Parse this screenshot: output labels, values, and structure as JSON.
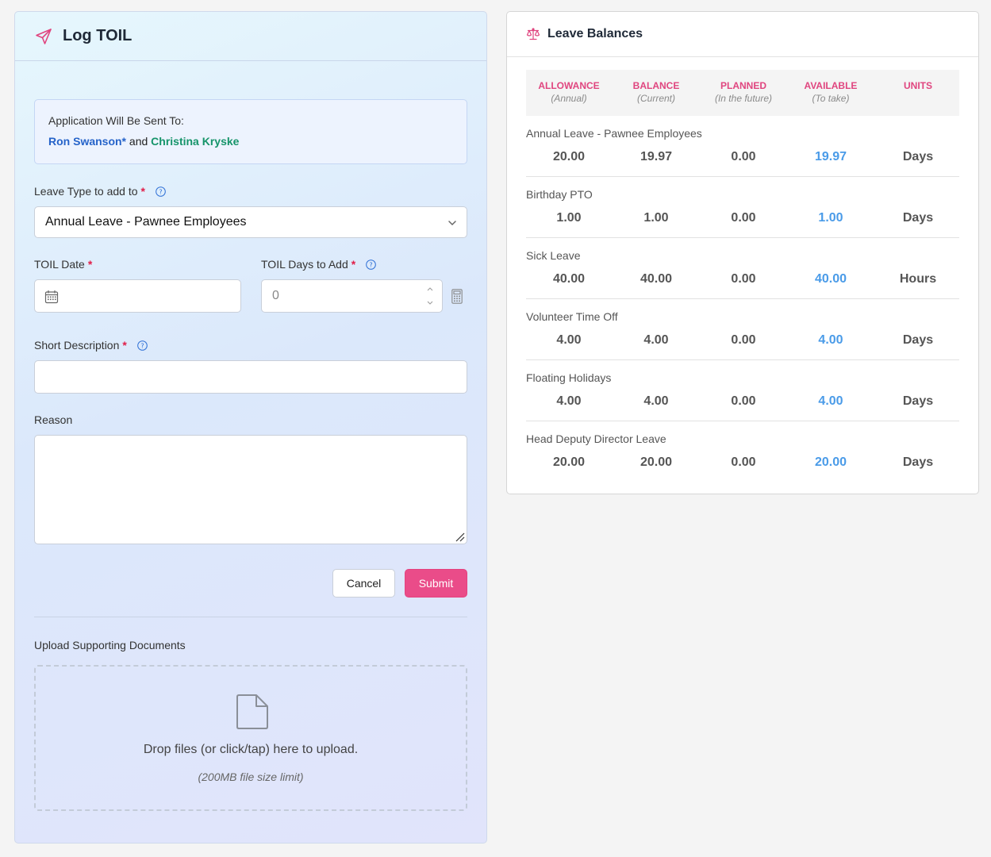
{
  "log_card": {
    "title": "Log TOIL",
    "recipient_label": "Application Will Be Sent To:",
    "recipient_1": "Ron Swanson*",
    "recipient_connector": "and",
    "recipient_2": "Christina Kryske",
    "leave_type_label": "Leave Type to add to",
    "leave_type_value": "Annual Leave - Pawnee Employees",
    "toil_date_label": "TOIL Date",
    "toil_days_label": "TOIL Days to Add",
    "toil_days_value": "0",
    "short_desc_label": "Short Description",
    "reason_label": "Reason",
    "required_mark": "*",
    "cancel_label": "Cancel",
    "submit_label": "Submit",
    "upload_label": "Upload Supporting Documents",
    "drop_text": "Drop files (or click/tap) here to upload.",
    "drop_limit": "(200MB file size limit)"
  },
  "balances": {
    "title": "Leave Balances",
    "columns": [
      {
        "label": "ALLOWANCE",
        "sub": "(Annual)"
      },
      {
        "label": "BALANCE",
        "sub": "(Current)"
      },
      {
        "label": "PLANNED",
        "sub": "(In the future)"
      },
      {
        "label": "AVAILABLE",
        "sub": "(To take)"
      },
      {
        "label": "UNITS",
        "sub": ""
      }
    ],
    "rows": [
      {
        "name": "Annual Leave - Pawnee Employees",
        "allowance": "20.00",
        "balance": "19.97",
        "planned": "0.00",
        "available": "19.97",
        "units": "Days"
      },
      {
        "name": "Birthday PTO",
        "allowance": "1.00",
        "balance": "1.00",
        "planned": "0.00",
        "available": "1.00",
        "units": "Days"
      },
      {
        "name": "Sick Leave",
        "allowance": "40.00",
        "balance": "40.00",
        "planned": "0.00",
        "available": "40.00",
        "units": "Hours"
      },
      {
        "name": "Volunteer Time Off",
        "allowance": "4.00",
        "balance": "4.00",
        "planned": "0.00",
        "available": "4.00",
        "units": "Days"
      },
      {
        "name": "Floating Holidays",
        "allowance": "4.00",
        "balance": "4.00",
        "planned": "0.00",
        "available": "4.00",
        "units": "Days"
      },
      {
        "name": "Head Deputy Director Leave",
        "allowance": "20.00",
        "balance": "20.00",
        "planned": "0.00",
        "available": "20.00",
        "units": "Days"
      }
    ]
  },
  "icons": {
    "log_title_icon": "paper-plane-icon",
    "balances_title_icon": "scales-icon",
    "help_icon": "question-circle-icon",
    "select_icon": "chevron-down-icon",
    "date_icon": "calendar-icon",
    "calc_icon": "calculator-icon",
    "upload_icon": "file-icon"
  },
  "colors": {
    "accent": "#ea4c89",
    "recipient_1": "#2563c9",
    "recipient_2": "#16946a",
    "available_value": "#4a9be8",
    "column_header": "#e0457f"
  }
}
